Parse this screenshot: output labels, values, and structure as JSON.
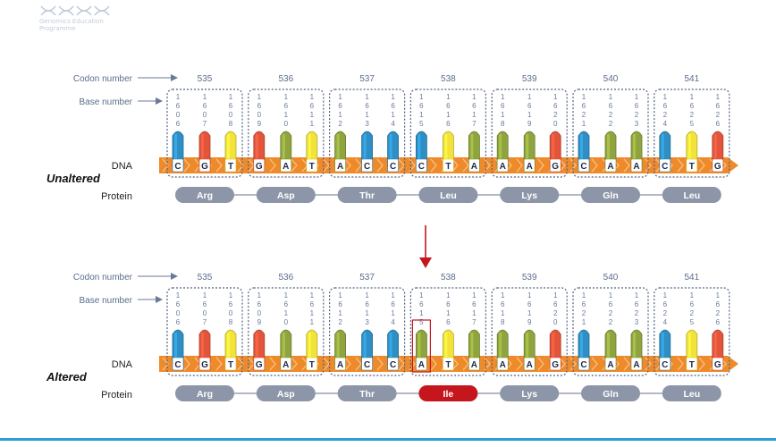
{
  "logo": {
    "text": "Genomics Education Programme"
  },
  "labels": {
    "codon_number": "Codon number",
    "base_number": "Base number",
    "dna": "DNA",
    "protein": "Protein"
  },
  "colors": {
    "A": "#8fa43f",
    "C": "#2f8fc4",
    "G": "#e2553b",
    "T": "#f2e23a",
    "backbone": "#ef8a2b",
    "protein_normal": "#8d95a8",
    "protein_changed": "#c4161c",
    "arrow": "#c4161c",
    "label_text": "#5a6d8c"
  },
  "codons": [
    {
      "number": "535",
      "base_numbers": [
        "1606",
        "1607",
        "1608"
      ]
    },
    {
      "number": "536",
      "base_numbers": [
        "1609",
        "1610",
        "1611"
      ]
    },
    {
      "number": "537",
      "base_numbers": [
        "1612",
        "1613",
        "1614"
      ]
    },
    {
      "number": "538",
      "base_numbers": [
        "1615",
        "1616",
        "1617"
      ]
    },
    {
      "number": "539",
      "base_numbers": [
        "1618",
        "1619",
        "1620"
      ]
    },
    {
      "number": "540",
      "base_numbers": [
        "1621",
        "1622",
        "1623"
      ]
    },
    {
      "number": "541",
      "base_numbers": [
        "1624",
        "1625",
        "1626"
      ]
    }
  ],
  "panels": [
    {
      "title": "Unaltered",
      "dna": [
        "C",
        "G",
        "T",
        "G",
        "A",
        "T",
        "A",
        "C",
        "C",
        "C",
        "T",
        "A",
        "A",
        "A",
        "G",
        "C",
        "A",
        "A",
        "C",
        "T",
        "G"
      ],
      "protein": [
        "Arg",
        "Asp",
        "Thr",
        "Leu",
        "Lys",
        "Gln",
        "Leu"
      ],
      "changed_base_index": -1,
      "changed_codon_index": -1
    },
    {
      "title": "Altered",
      "dna": [
        "C",
        "G",
        "T",
        "G",
        "A",
        "T",
        "A",
        "C",
        "C",
        "A",
        "T",
        "A",
        "A",
        "A",
        "G",
        "C",
        "A",
        "A",
        "C",
        "T",
        "G"
      ],
      "protein": [
        "Arg",
        "Asp",
        "Thr",
        "Ile",
        "Lys",
        "Gln",
        "Leu"
      ],
      "changed_base_index": 9,
      "changed_codon_index": 3
    }
  ]
}
